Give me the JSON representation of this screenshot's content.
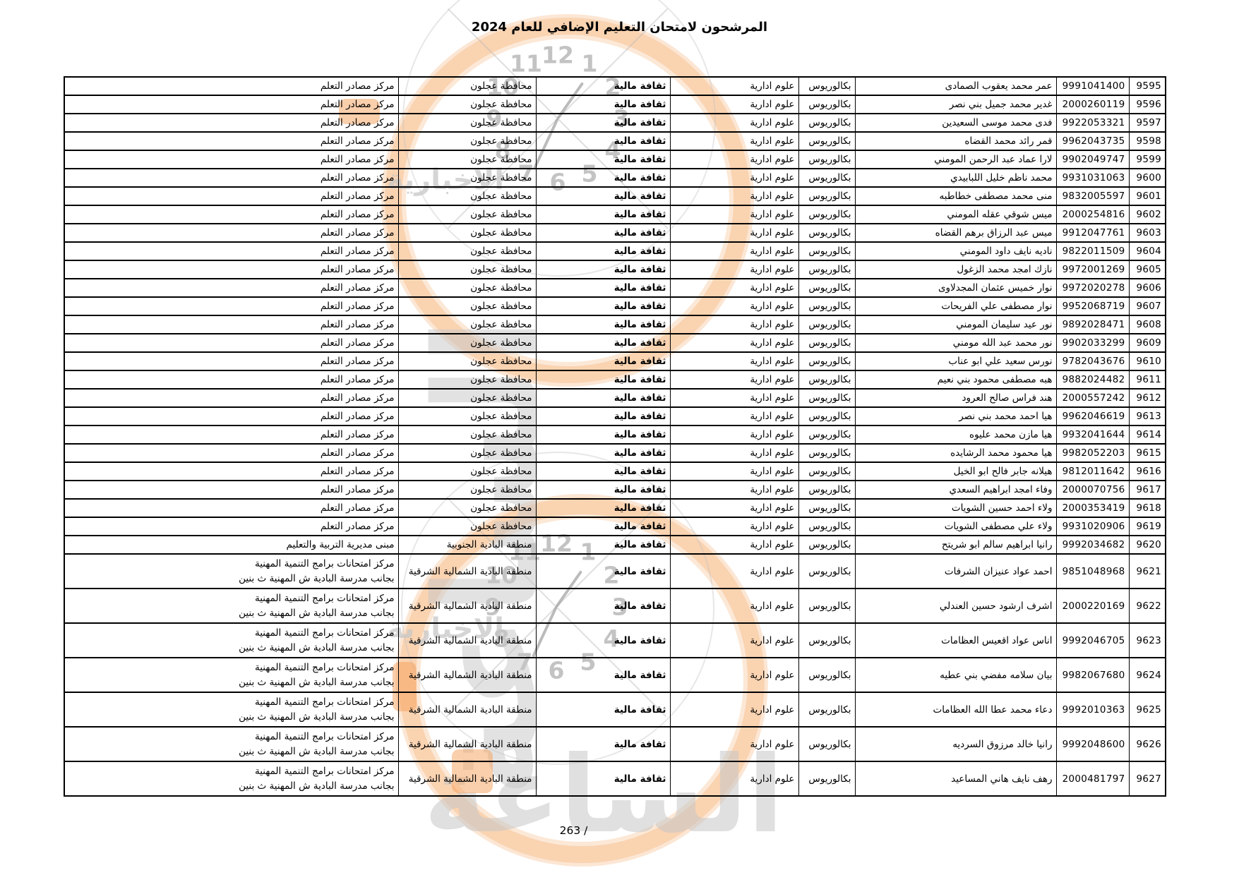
{
  "page": {
    "title": "المرشحون لامتحان التعليم الإضافي للعام 2024",
    "footer_page_number": "263 /"
  },
  "table": {
    "common": {
      "degree": "بكالوريوس",
      "field": "علوم ادارية",
      "subject": "ثقافة مالية"
    },
    "regions": {
      "ajloun": "محافظة عجلون",
      "south_badia": "منطقة البادية الجنوبية",
      "ne_badia": "منطقة البادية الشمالية الشرقية"
    },
    "centers": {
      "lrc": [
        "مركز مصادر التعلم"
      ],
      "directorate": [
        "مبنى مديرية التربية والتعليم"
      ],
      "pro_dev": [
        "مركز امتحانات برامج التنمية المهنية",
        "بجانب مدرسة البادية ش المهنية ث بنين"
      ]
    },
    "rows": [
      [
        "9595",
        "9991041400",
        "عمر محمد يعقوب الصمادى",
        "ajloun",
        "lrc"
      ],
      [
        "9596",
        "2000260119",
        "غدير محمد جميل بني نصر",
        "ajloun",
        "lrc"
      ],
      [
        "9597",
        "9922053321",
        "فدى محمد موسى السعيدين",
        "ajloun",
        "lrc"
      ],
      [
        "9598",
        "9962043735",
        "قمر رائد محمد القضاه",
        "ajloun",
        "lrc"
      ],
      [
        "9599",
        "9902049747",
        "لارا عماد عبد الرحمن المومني",
        "ajloun",
        "lrc"
      ],
      [
        "9600",
        "9931031063",
        "محمد ناظم خليل اللبابيدي",
        "ajloun",
        "lrc"
      ],
      [
        "9601",
        "9832005597",
        "منى محمد مصطفى خطاطبه",
        "ajloun",
        "lrc"
      ],
      [
        "9602",
        "2000254816",
        "ميس شوقي عقله المومني",
        "ajloun",
        "lrc"
      ],
      [
        "9603",
        "9912047761",
        "ميس عبد الرزاق برهم القضاه",
        "ajloun",
        "lrc"
      ],
      [
        "9604",
        "9822011509",
        "ناديه نايف داود المومني",
        "ajloun",
        "lrc"
      ],
      [
        "9605",
        "9972001269",
        "نازك امجد محمد الزغول",
        "ajloun",
        "lrc"
      ],
      [
        "9606",
        "9972020278",
        "نوار خميس عثمان المجدلاوى",
        "ajloun",
        "lrc"
      ],
      [
        "9607",
        "9952068719",
        "نوار مصطفى علي الفريحات",
        "ajloun",
        "lrc"
      ],
      [
        "9608",
        "9892028471",
        "نور عيد سليمان المومني",
        "ajloun",
        "lrc"
      ],
      [
        "9609",
        "9902033299",
        "نور محمد عبد الله مومني",
        "ajloun",
        "lrc"
      ],
      [
        "9610",
        "9782043676",
        "نورس سعيد علي ابو عناب",
        "ajloun",
        "lrc"
      ],
      [
        "9611",
        "9882024482",
        "هبه مصطفى محمود بني نعيم",
        "ajloun",
        "lrc"
      ],
      [
        "9612",
        "2000557242",
        "هند فراس صالح العرود",
        "ajloun",
        "lrc"
      ],
      [
        "9613",
        "9962046619",
        "هيا احمد محمد بني نصر",
        "ajloun",
        "lrc"
      ],
      [
        "9614",
        "9932041644",
        "هيا مازن محمد عليوه",
        "ajloun",
        "lrc"
      ],
      [
        "9615",
        "9982052203",
        "هيا محمود محمد الرشايده",
        "ajloun",
        "lrc"
      ],
      [
        "9616",
        "9812011642",
        "هيلانه جابر فالح ابو الخيل",
        "ajloun",
        "lrc"
      ],
      [
        "9617",
        "2000070756",
        "وفاء امجد ابراهيم السعدي",
        "ajloun",
        "lrc"
      ],
      [
        "9618",
        "2000353419",
        "ولاء احمد حسين الشويات",
        "ajloun",
        "lrc"
      ],
      [
        "9619",
        "9931020906",
        "ولاء علي مصطفى الشويات",
        "ajloun",
        "lrc"
      ],
      [
        "9620",
        "9992034682",
        "رانيا ابراهيم سالم ابو شريتح",
        "south_badia",
        "directorate"
      ],
      [
        "9621",
        "9851048968",
        "احمد عواد عنيزان الشرفات",
        "ne_badia",
        "pro_dev"
      ],
      [
        "9622",
        "2000220169",
        "اشرف ارشود حسين العندلي",
        "ne_badia",
        "pro_dev"
      ],
      [
        "9623",
        "9992046705",
        "اناس عواد اقعيس العظامات",
        "ne_badia",
        "pro_dev"
      ],
      [
        "9624",
        "9982067680",
        "بيان سلامه مفضي بني عطيه",
        "ne_badia",
        "pro_dev"
      ],
      [
        "9625",
        "9992010363",
        "دعاء محمد عطا الله العظامات",
        "ne_badia",
        "pro_dev"
      ],
      [
        "9626",
        "9992048600",
        "رانيا خالد مرزوق السرديه",
        "ne_badia",
        "pro_dev"
      ],
      [
        "9627",
        "2000481797",
        "رهف نايف هاني المساعيد",
        "ne_badia",
        "pro_dev"
      ]
    ]
  },
  "watermark": {
    "brand_word_large": "الساعة",
    "brand_word_small": "الاخبارية",
    "clock_numbers": [
      "12",
      "1",
      "2",
      "3",
      "4",
      "5",
      "6",
      "7",
      "8",
      "9",
      "10",
      "11"
    ],
    "accent_color": "#f2a05f",
    "gray_color": "#c7c7c7"
  }
}
